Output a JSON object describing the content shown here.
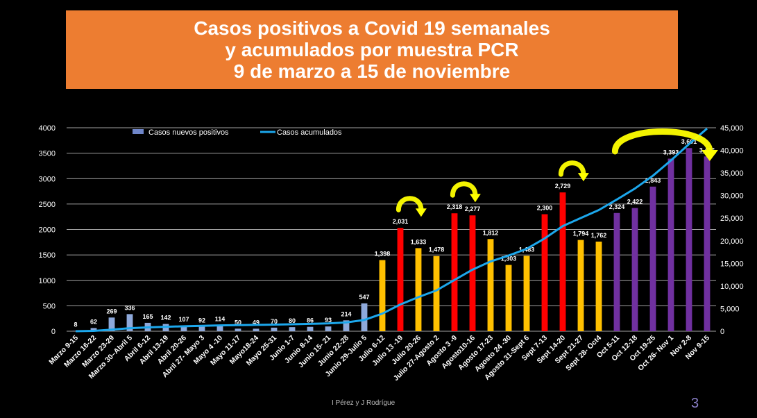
{
  "title": {
    "lines": [
      "Casos positivos a Covid 19 semanales",
      "y acumulados por muestra PCR",
      "9 de marzo a 15 de noviembre"
    ]
  },
  "footer": "I Pérez y J Rodrígue",
  "page_number": "3",
  "colors": {
    "background": "#000000",
    "title_bg": "#ED7D31",
    "bar_blue": "#8EA9DB",
    "bar_yellow": "#FFC000",
    "bar_red": "#FF0000",
    "bar_purple": "#7030A0",
    "line": "#1CA7EC",
    "arrow": "#FFFF00"
  },
  "chart_data": {
    "type": "bar",
    "legend_position": "top",
    "grid": true,
    "ylim": [
      0,
      4000
    ],
    "y2lim": [
      0,
      45000
    ],
    "yticks": [
      "0",
      "500",
      "1000",
      "1500",
      "2000",
      "2500",
      "3000",
      "3500",
      "4000"
    ],
    "y2ticks": [
      "0",
      "5,000",
      "10,000",
      "15,000",
      "20,000",
      "25,000",
      "30,000",
      "35,000",
      "40,000",
      "45,000"
    ],
    "categories": [
      "Marzo 9-15",
      "Marzo 16-22",
      "Marzo 23-29",
      "Marzo 30–Abril 5",
      "Abril 6-12",
      "Abril 13-19",
      "Abril 20-26",
      "Abril 27- Mayo 3",
      "Mayo 4 -10",
      "Mayo 11-17",
      "Mayo18-24",
      "Mayo 25-31",
      "Junio 1-7",
      "Junio 8-14",
      "Junio 15- 21",
      "Junio 22-28",
      "Junio 29-Julio 5",
      "Julio 6-12",
      "Julio 13 -19",
      "Julio 20-26",
      "Julio 27-Agosto 2",
      "Agosto 3 -9",
      "Agosto10-16",
      "Agosto 17-23",
      "Agosto 24 -30",
      "Agosto 31-Sept 6",
      "Sept 7-13",
      "Sept 14-20",
      "Sept 21-27",
      "Sept 28- Oct4",
      "Oct 5-11",
      "Oct 12-18",
      "Oct 19-25",
      "Oct 26- Nov 1",
      "Nov 2-8",
      "Nov 9-15"
    ],
    "series": [
      {
        "name": "Casos nuevos positivos",
        "axis": "left",
        "values": [
          8,
          62,
          269,
          336,
          165,
          142,
          107,
          92,
          114,
          50,
          49,
          70,
          80,
          86,
          93,
          214,
          547,
          1398,
          2031,
          1633,
          1478,
          2318,
          2277,
          1812,
          1303,
          1483,
          2300,
          2729,
          1794,
          1762,
          2324,
          2422,
          2843,
          3393,
          3601,
          3436
        ],
        "data_labels": [
          "8",
          "62",
          "269",
          "336",
          "165",
          "142",
          "107",
          "92",
          "114",
          "50",
          "49",
          "70",
          "80",
          "86",
          "93",
          "214",
          "547",
          "1,398",
          "2,031",
          "1,633",
          "1,478",
          "2,318",
          "2,277",
          "1,812",
          "1,303",
          "1,483",
          "2,300",
          "2,729",
          "1,794",
          "1,762",
          "2,324",
          "2,422",
          "2,843",
          "3,393",
          "3,601",
          "3,436"
        ],
        "bar_colors": [
          "#8EA9DB",
          "#8EA9DB",
          "#8EA9DB",
          "#8EA9DB",
          "#8EA9DB",
          "#8EA9DB",
          "#8EA9DB",
          "#8EA9DB",
          "#8EA9DB",
          "#8EA9DB",
          "#8EA9DB",
          "#8EA9DB",
          "#8EA9DB",
          "#8EA9DB",
          "#8EA9DB",
          "#8EA9DB",
          "#8EA9DB",
          "#FFC000",
          "#FF0000",
          "#FFC000",
          "#FFC000",
          "#FF0000",
          "#FF0000",
          "#FFC000",
          "#FFC000",
          "#FFC000",
          "#FF0000",
          "#FF0000",
          "#FFC000",
          "#FFC000",
          "#7030A0",
          "#7030A0",
          "#7030A0",
          "#7030A0",
          "#7030A0",
          "#7030A0"
        ]
      },
      {
        "name": "Casos acumulados",
        "axis": "right",
        "type": "line",
        "values": [
          8,
          70,
          339,
          675,
          840,
          982,
          1089,
          1181,
          1295,
          1345,
          1394,
          1464,
          1544,
          1630,
          1723,
          1937,
          2484,
          3882,
          5913,
          7546,
          9024,
          11342,
          13619,
          15431,
          16734,
          18217,
          20517,
          23246,
          25040,
          26802,
          29126,
          31548,
          34391,
          37784,
          41385,
          44821
        ]
      }
    ],
    "annotations": [
      {
        "shape": "curved-arrow",
        "over": [
          "Julio 13 -19",
          "Julio 20-26"
        ]
      },
      {
        "shape": "curved-arrow",
        "over": [
          "Agosto 3 -9",
          "Agosto10-16"
        ]
      },
      {
        "shape": "curved-arrow",
        "over": [
          "Sept 14-20",
          "Sept 21-27"
        ]
      },
      {
        "shape": "curved-arrow",
        "over": [
          "Oct 5-11",
          "Nov 9-15"
        ]
      }
    ]
  }
}
